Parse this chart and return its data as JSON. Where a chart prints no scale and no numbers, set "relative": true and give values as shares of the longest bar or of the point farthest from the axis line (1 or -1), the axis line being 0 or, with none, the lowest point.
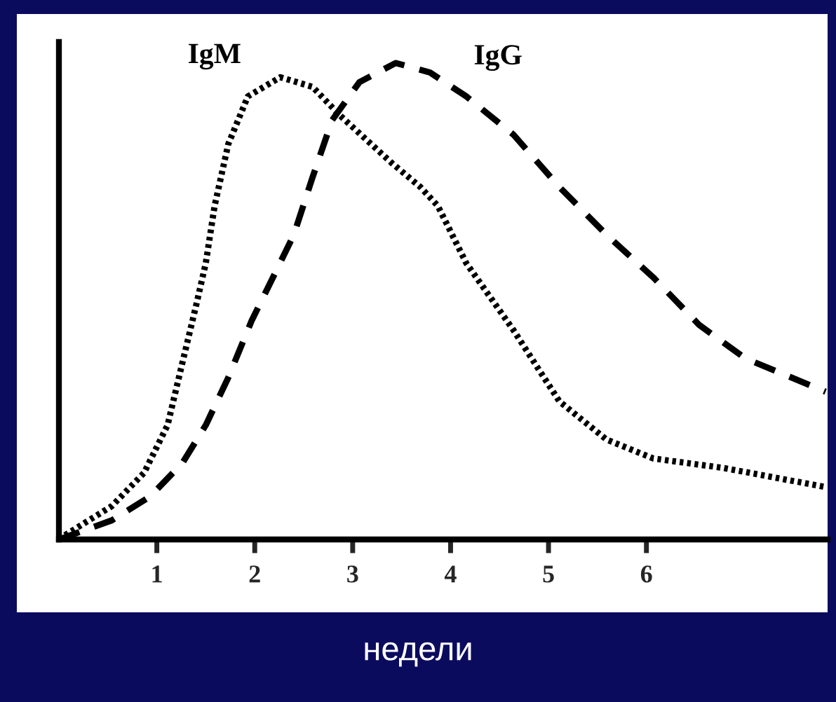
{
  "chart_data": {
    "type": "line",
    "xlabel": "недели",
    "relative": true,
    "xlim": [
      0,
      7.85
    ],
    "xticks": [
      1,
      2,
      3,
      4,
      5,
      6
    ],
    "series": [
      {
        "name": "IgM",
        "color": "#000000",
        "line_style": "dotted",
        "x": [
          0,
          0.07,
          0.54,
          0.87,
          1.11,
          1.26,
          1.4,
          1.5,
          1.59,
          1.73,
          1.93,
          2.26,
          2.59,
          2.87,
          3.4,
          3.69,
          3.87,
          4.16,
          4.64,
          5.11,
          5.59,
          6.07,
          6.79,
          7.83
        ],
        "values": [
          0,
          0.01,
          0.07,
          0.14,
          0.24,
          0.37,
          0.49,
          0.58,
          0.7,
          0.83,
          0.93,
          0.97,
          0.95,
          0.89,
          0.79,
          0.74,
          0.7,
          0.58,
          0.44,
          0.29,
          0.21,
          0.17,
          0.15,
          0.11
        ]
      },
      {
        "name": "IgG",
        "color": "#000000",
        "line_style": "dashed",
        "x": [
          0,
          0.54,
          0.93,
          1.26,
          1.5,
          1.73,
          1.97,
          2.21,
          2.4,
          2.59,
          2.79,
          3.07,
          3.44,
          3.79,
          4.16,
          4.64,
          5.11,
          5.59,
          6.07,
          6.54,
          7.01,
          7.83
        ],
        "values": [
          0,
          0.04,
          0.09,
          0.16,
          0.24,
          0.34,
          0.46,
          0.56,
          0.64,
          0.76,
          0.88,
          0.96,
          1.0,
          0.98,
          0.93,
          0.85,
          0.74,
          0.64,
          0.55,
          0.45,
          0.38,
          0.31
        ]
      }
    ]
  }
}
